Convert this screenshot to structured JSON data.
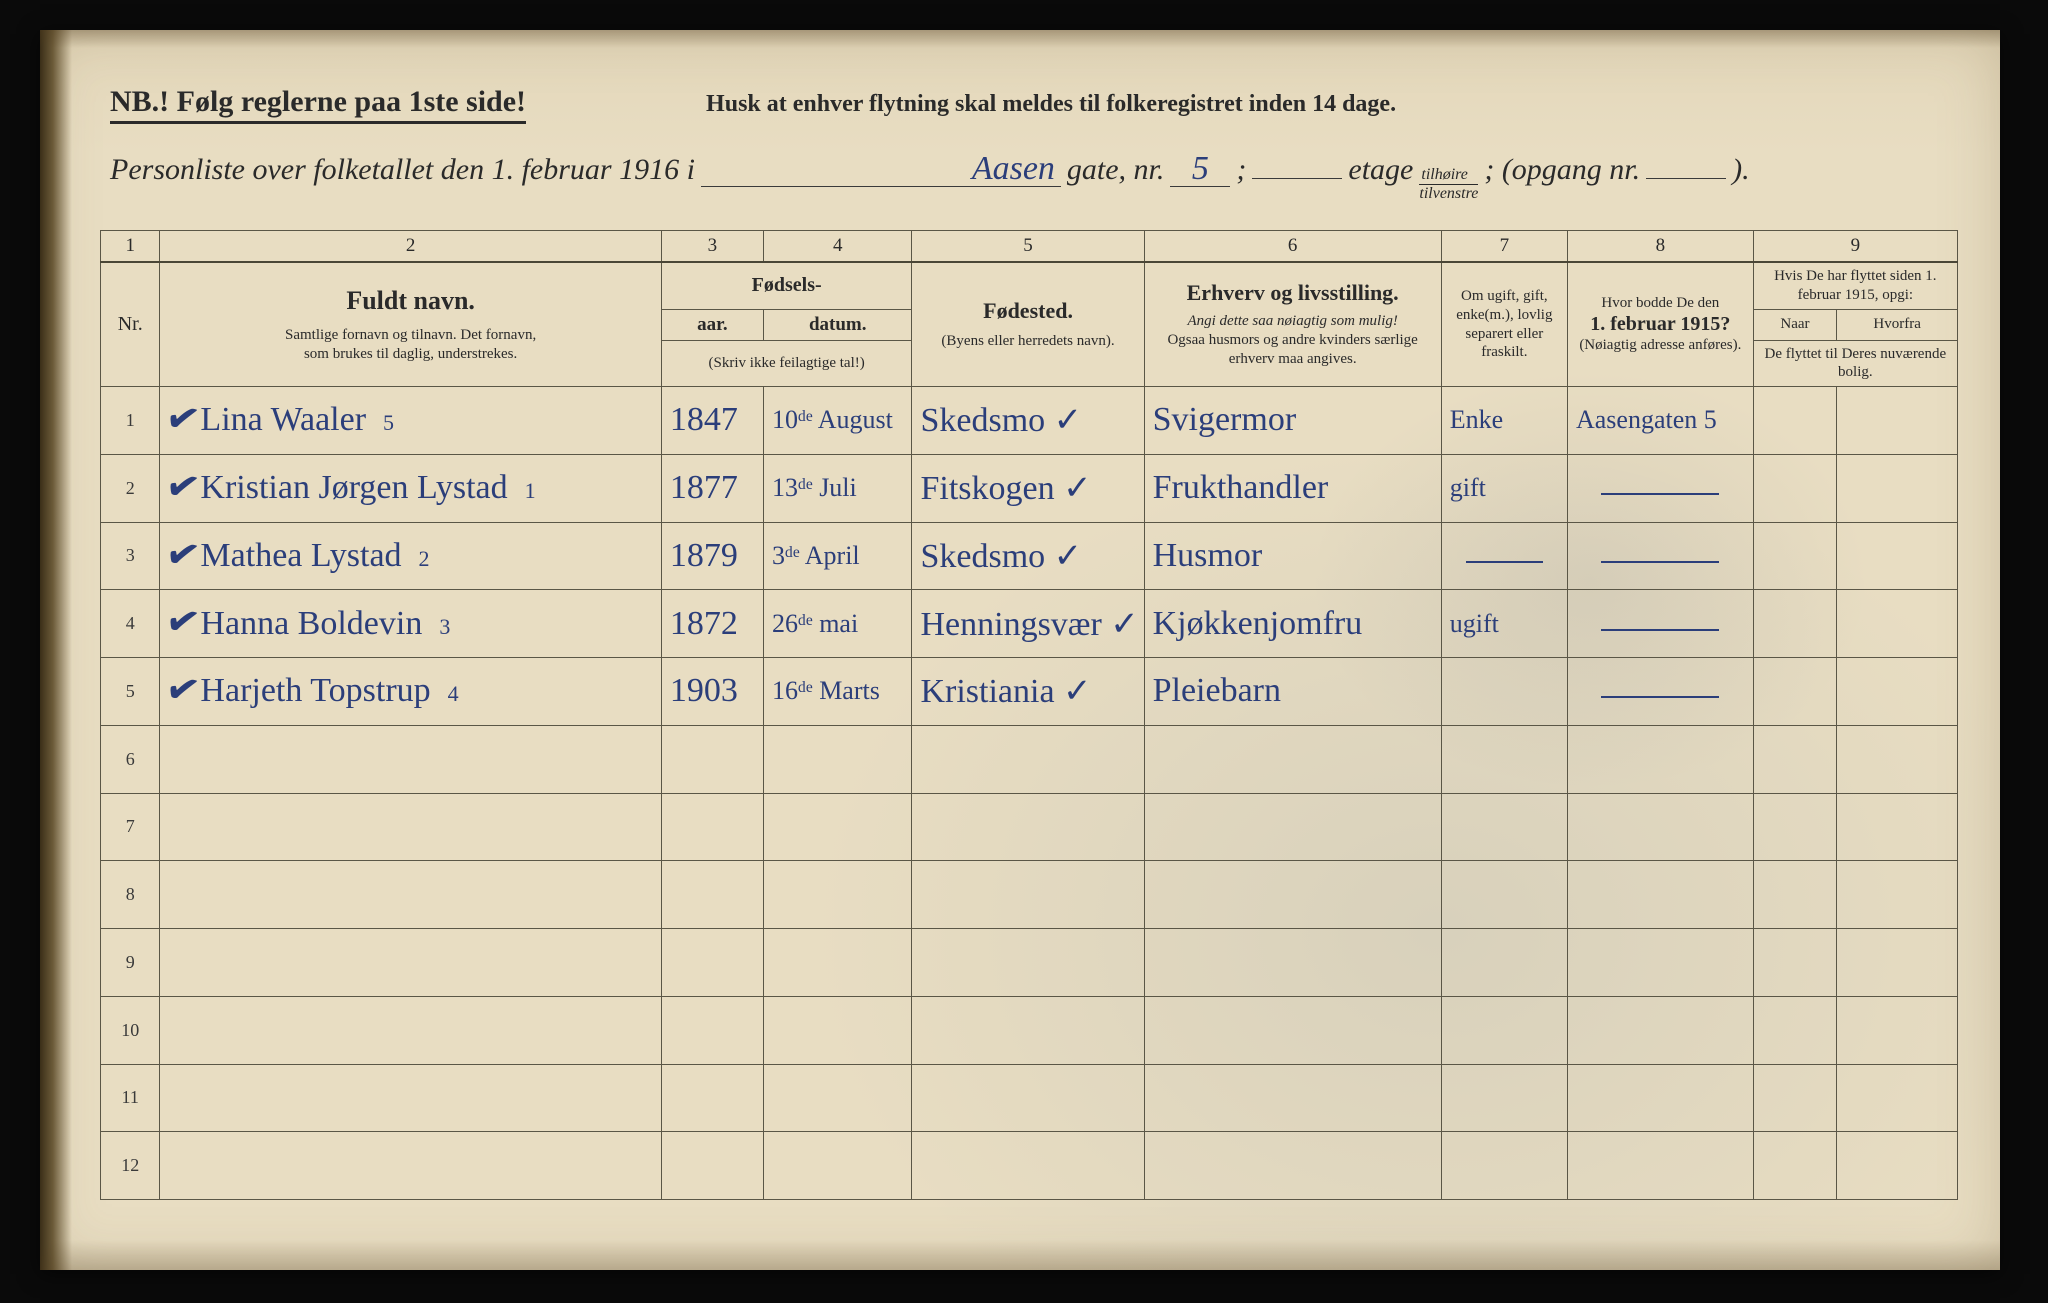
{
  "header": {
    "nb": "NB.!  Følg reglerne paa 1ste side!",
    "husk": "Husk at enhver flytning skal meldes til folkeregistret inden 14 dage.",
    "title_prefix": "Personliste over folketallet den 1. februar 1916 i",
    "street_hand": "Aasen",
    "gate_label": "gate, nr.",
    "house_nr": "5",
    "semicolon": ";",
    "etage_label": "etage",
    "fraction_top": "tilhøire",
    "fraction_bot": "tilvenstre",
    "opgang_label": "; (opgang nr.",
    "opgang_val": "",
    "close": ")."
  },
  "colnums": [
    "1",
    "2",
    "3",
    "4",
    "5",
    "6",
    "7",
    "8",
    "9"
  ],
  "columns": {
    "nr": "Nr.",
    "name_title": "Fuldt navn.",
    "name_sub1": "Samtlige fornavn og tilnavn.  Det fornavn,",
    "name_sub2": "som brukes til daglig, understrekes.",
    "fodsels": "Fødsels-",
    "aar": "aar.",
    "datum": "datum.",
    "aar_note": "(Skriv ikke feilagtige tal!)",
    "fodested": "Fødested.",
    "fodested_sub": "(Byens eller herredets navn).",
    "erhverv": "Erhverv og livsstilling.",
    "erhverv_sub1": "Angi dette saa nøiagtig som mulig!",
    "erhverv_sub2": "Ogsaa husmors og andre kvinders særlige erhverv maa angives.",
    "ugift": "Om ugift, gift, enke(m.), lovlig separert eller fraskilt.",
    "bodde": "Hvor bodde De den",
    "bodde2": "1. februar 1915?",
    "bodde_sub": "(Nøiagtig adresse anføres).",
    "flyttet": "Hvis De har flyttet siden 1. februar 1915, opgi:",
    "naar": "Naar",
    "hvorfra": "Hvorfra",
    "flyttet_sub": "De flyttet til Deres nuværende bolig."
  },
  "rows": [
    {
      "nr": "1",
      "tick": "✔",
      "name": "Lina Waaler",
      "sub": "5",
      "aar": "1847",
      "datum": "10ᵈᵉ August",
      "sted": "Skedsmo ✓",
      "occ": "Svigermor",
      "ms": "Enke",
      "r1915": "Aasengaten 5",
      "naar": "",
      "hvor": ""
    },
    {
      "nr": "2",
      "tick": "✔",
      "name": "Kristian Jørgen Lystad",
      "sub": "1",
      "aar": "1877",
      "datum": "13ᵈᵉ Juli",
      "sted": "Fitskogen ✓",
      "occ": "Frukthandler",
      "ms": "gift",
      "r1915": "—",
      "naar": "",
      "hvor": ""
    },
    {
      "nr": "3",
      "tick": "✔",
      "name": "Mathea Lystad",
      "sub": "2",
      "aar": "1879",
      "datum": "3ᵈᵉ April",
      "sted": "Skedsmo ✓",
      "occ": "Husmor",
      "ms": "—",
      "r1915": "—",
      "naar": "",
      "hvor": ""
    },
    {
      "nr": "4",
      "tick": "✔",
      "name": "Hanna Boldevin",
      "sub": "3",
      "aar": "1872",
      "datum": "26ᵈᵉ mai",
      "sted": "Henningsvær ✓",
      "occ": "Kjøkkenjomfru",
      "ms": "ugift",
      "r1915": "—",
      "naar": "",
      "hvor": ""
    },
    {
      "nr": "5",
      "tick": "✔",
      "name": "Harjeth Topstrup",
      "sub": "4",
      "aar": "1903",
      "datum": "16ᵈᵉ Marts",
      "sted": "Kristiania ✓",
      "occ": "Pleiebarn",
      "ms": "",
      "r1915": "—",
      "naar": "",
      "hvor": ""
    },
    {
      "nr": "6"
    },
    {
      "nr": "7"
    },
    {
      "nr": "8"
    },
    {
      "nr": "9"
    },
    {
      "nr": "10"
    },
    {
      "nr": "11"
    },
    {
      "nr": "12"
    }
  ],
  "colors": {
    "paper": "#e8ddc2",
    "ink_print": "#2a2a2a",
    "ink_hand": "#2b3e7a",
    "rule": "#5a5646"
  }
}
